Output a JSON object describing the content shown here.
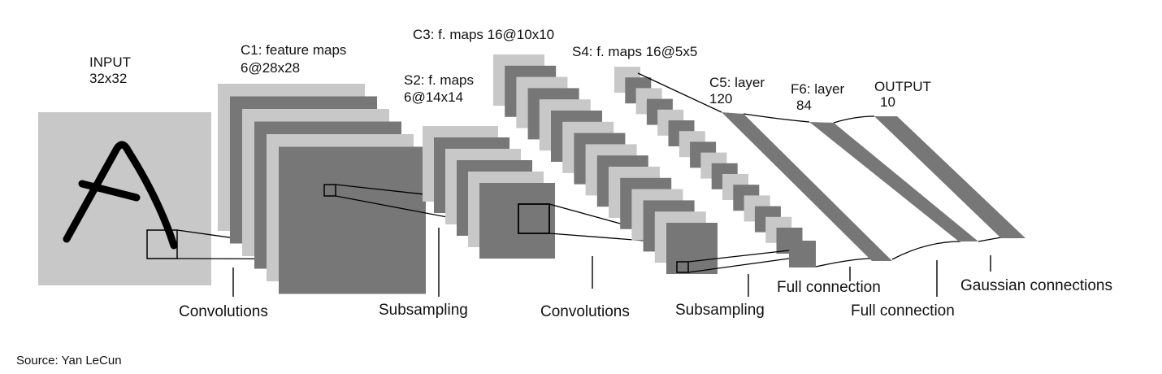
{
  "colors": {
    "light": "#c8c8c8",
    "dark": "#777777",
    "line": "#111111",
    "text": "#111111",
    "background": "#ffffff"
  },
  "layers": {
    "input": {
      "name": "INPUT",
      "size": "32x32"
    },
    "c1": {
      "name": "C1: feature maps",
      "size": "6@28x28"
    },
    "s2": {
      "name": "S2: f. maps",
      "size": "6@14x14"
    },
    "c3": {
      "name": "C3: f. maps 16@10x10"
    },
    "s4": {
      "name": "S4: f. maps 16@5x5"
    },
    "c5": {
      "name": "C5: layer",
      "size": "120"
    },
    "f6": {
      "name": "F6: layer",
      "size": "84"
    },
    "output": {
      "name": "OUTPUT",
      "size": "10"
    }
  },
  "operations": {
    "conv1": "Convolutions",
    "sub1": "Subsampling",
    "conv2": "Convolutions",
    "sub2": "Subsampling",
    "full1": "Full connection",
    "full2": "Full connection",
    "gauss": "Gaussian connections"
  },
  "source": "Source: Yan LeCun"
}
